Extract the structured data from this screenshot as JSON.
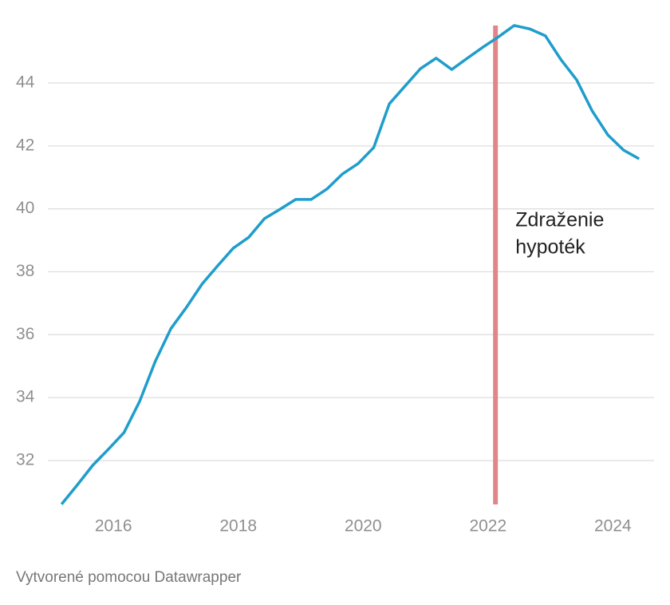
{
  "chart_data": {
    "type": "line",
    "x": [
      2015.17,
      2015.42,
      2015.67,
      2015.92,
      2016.17,
      2016.42,
      2016.67,
      2016.92,
      2017.17,
      2017.42,
      2017.67,
      2017.92,
      2018.17,
      2018.42,
      2018.67,
      2018.92,
      2019.17,
      2019.42,
      2019.67,
      2019.92,
      2020.17,
      2020.42,
      2020.67,
      2020.92,
      2021.17,
      2021.42,
      2021.67,
      2021.92,
      2022.17,
      2022.42,
      2022.67,
      2022.92,
      2023.17,
      2023.42,
      2023.67,
      2023.92,
      2024.17,
      2024.42
    ],
    "series": [
      {
        "color": "#1f9dcb",
        "values": [
          30.61,
          31.22,
          31.85,
          32.36,
          32.89,
          33.88,
          35.15,
          36.19,
          36.87,
          37.61,
          38.19,
          38.75,
          39.1,
          39.69,
          39.99,
          40.3,
          40.3,
          40.63,
          41.11,
          41.44,
          41.95,
          43.34,
          43.9,
          44.46,
          44.79,
          44.43,
          44.79,
          45.14,
          45.47,
          45.83,
          45.72,
          45.5,
          44.74,
          44.1,
          43.11,
          42.35,
          41.87,
          41.59
        ]
      }
    ],
    "xlim": [
      2014.95,
      2024.66
    ],
    "xticks": [
      2016,
      2018,
      2020,
      2022,
      2024
    ],
    "ylim": [
      30.5,
      46
    ],
    "yticks": [
      32,
      34,
      36,
      38,
      40,
      42,
      44
    ],
    "grid": true,
    "marker": {
      "x": 2022.12,
      "color": "#e0868a"
    },
    "annotation": [
      "Zdraženie",
      "hypoték"
    ],
    "source": "Vytvorené pomocou Datawrapper"
  }
}
